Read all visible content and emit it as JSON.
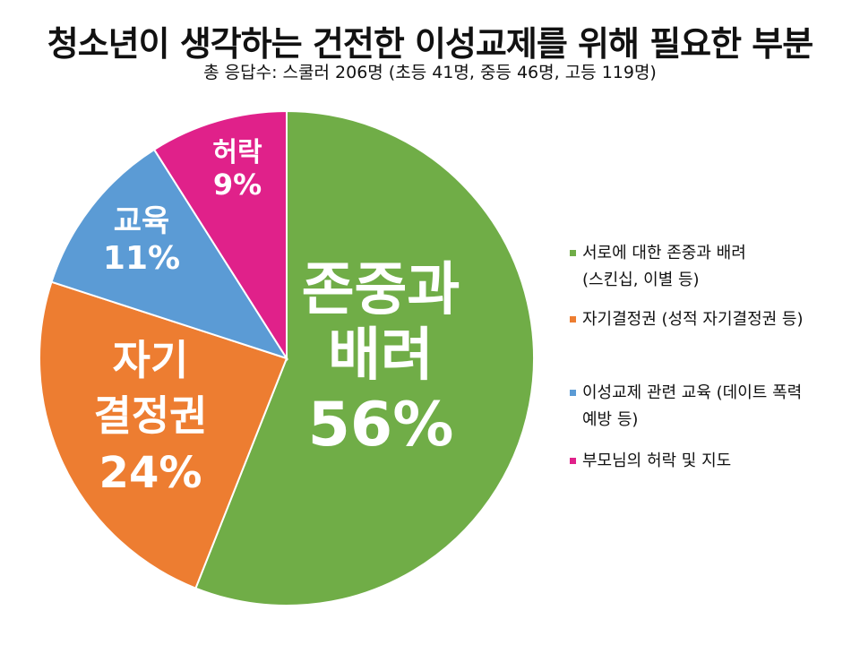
{
  "chart_data": {
    "type": "pie",
    "title": "청소년이 생각하는 건전한 이성교제를 위해 필요한 부분",
    "subtitle": "총 응답수: 스쿨러 206명 (초등 41명, 중등 46명, 고등 119명)",
    "slices": [
      {
        "name": "서로에 대한 존중과 배려 (스킨십, 이별 등)",
        "label_lines": [
          "존중과",
          "배려"
        ],
        "value": 56,
        "percent_label": "56%",
        "color": "#70ad47"
      },
      {
        "name": "자기결정권 (성적 자기결정권 등)",
        "label_lines": [
          "자기",
          "결정권"
        ],
        "value": 24,
        "percent_label": "24%",
        "color": "#ed7d31"
      },
      {
        "name": "이성교제 관련 교육 (데이트 폭력 예방 등)",
        "label_lines": [
          "교육"
        ],
        "value": 11,
        "percent_label": "11%",
        "color": "#5b9bd5"
      },
      {
        "name": "부모님의 허락 및 지도",
        "label_lines": [
          "허락"
        ],
        "value": 9,
        "percent_label": "9%",
        "color": "#e0218a"
      }
    ],
    "legend_position": "right"
  },
  "legend": [
    {
      "lines": [
        "서로에 대한 존중과 배려",
        "(스킨십, 이별 등)"
      ],
      "color": "#70ad47"
    },
    {
      "lines": [
        "자기결정권 (성적 자기결정권 등)"
      ],
      "color": "#ed7d31"
    },
    {
      "lines": [
        "이성교제 관련 교육 (데이트 폭력",
        "예방 등)"
      ],
      "color": "#5b9bd5"
    },
    {
      "lines": [
        "부모님의 허락 및 지도"
      ],
      "color": "#e0218a"
    }
  ]
}
